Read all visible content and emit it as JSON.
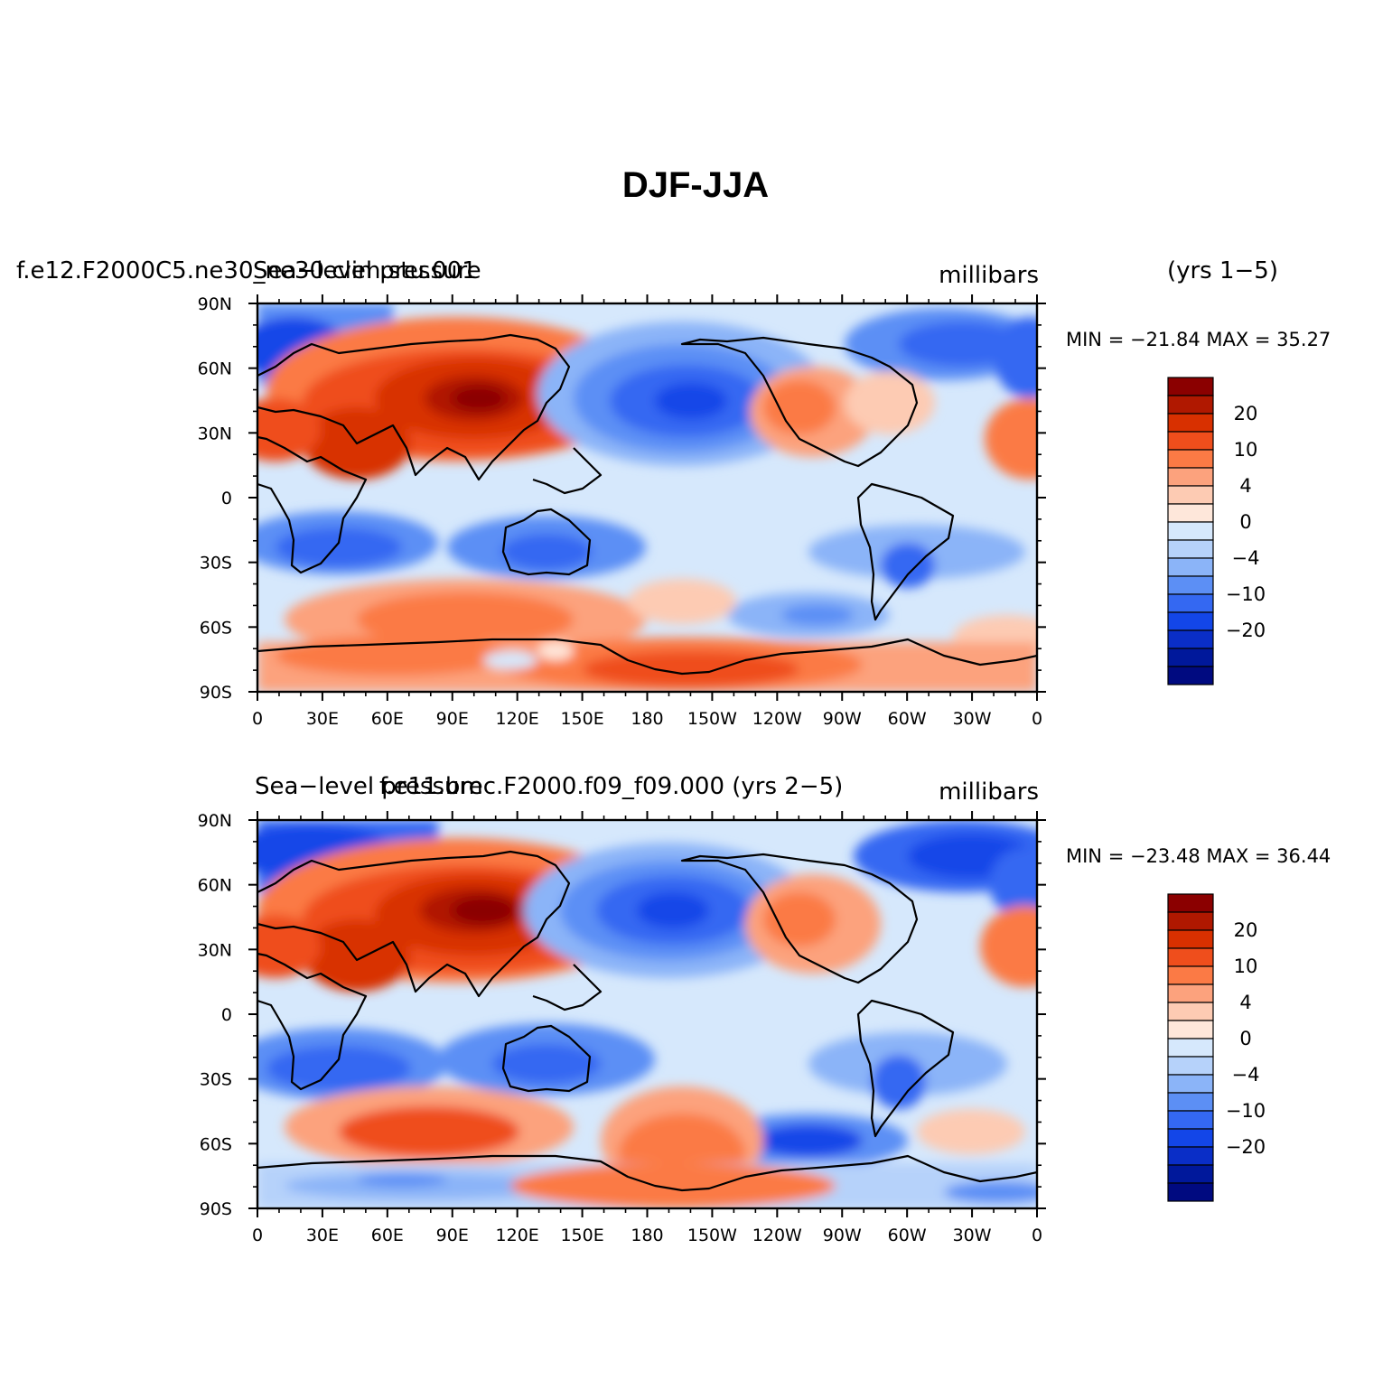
{
  "chart_data": {
    "type": "heatmap",
    "title": "DJF-JJA",
    "colorbar": {
      "tick_labels": [
        "20",
        "10",
        "4",
        "0",
        "−4",
        "−10",
        "−20"
      ],
      "colors": [
        "#8b0000",
        "#b01800",
        "#d83000",
        "#ef4e1c",
        "#fb7a45",
        "#fca27d",
        "#fdcbb3",
        "#fee7da",
        "#d6e8fc",
        "#b6d2fa",
        "#8bb4f8",
        "#5c8ff5",
        "#3468f2",
        "#1346e8",
        "#0a2ec7",
        "#00189b",
        "#000a80"
      ]
    },
    "x_ticks": [
      "0",
      "30E",
      "60E",
      "90E",
      "120E",
      "150E",
      "180",
      "150W",
      "120W",
      "90W",
      "60W",
      "30W",
      "0"
    ],
    "y_ticks": [
      "90N",
      "60N",
      "30N",
      "0",
      "30S",
      "60S",
      "90S"
    ],
    "panels": [
      {
        "name": "f.e12.F2000C5.ne30_ne30.clim.stu.001",
        "left_label": "f.e12.F2000C5.ne30_ne30.clim.stu.001",
        "center_label": "Sea−level pressure",
        "units": "millibars",
        "years": "(yrs  1−5)",
        "min": -21.84,
        "max": 35.27,
        "minmax_text": "MIN = −21.84  MAX =  35.27"
      },
      {
        "name": "f.e11.bmc.F2000.f09_f09.000",
        "left_label": "Sea−level pressure",
        "center_label": "f.e11.bmc.F2000.f09_f09.000 (yrs  2−5)",
        "units": "millibars",
        "min": -23.48,
        "max": 36.44,
        "minmax_text": "MIN = −23.48  MAX =  36.44"
      }
    ]
  }
}
